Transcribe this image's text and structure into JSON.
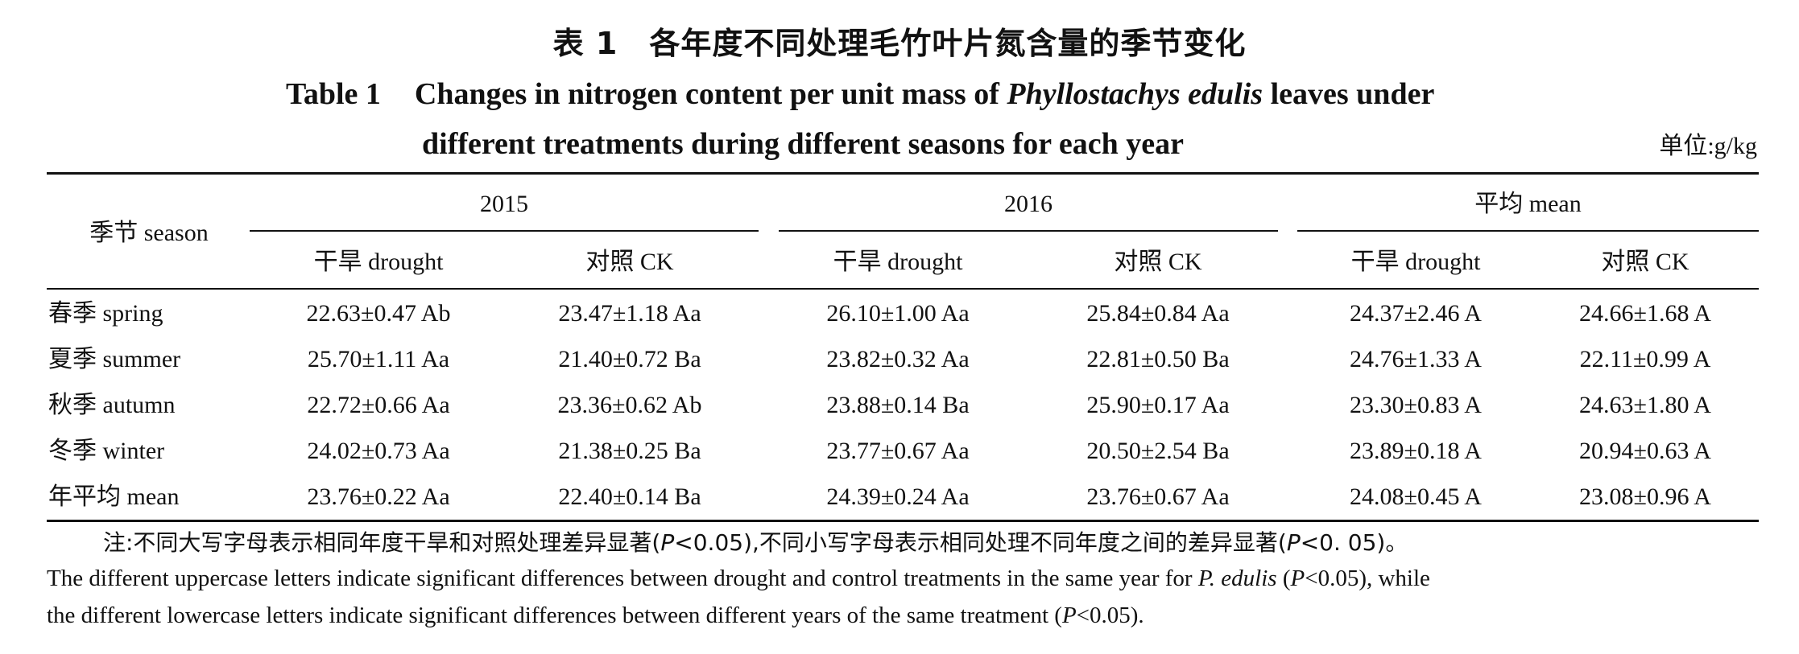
{
  "title": {
    "cn": "表 1　各年度不同处理毛竹叶片氮含量的季节变化",
    "en_number": "Table 1",
    "en_line1_before": "Changes in nitrogen content per unit mass of ",
    "en_species": "Phyllostachys edulis",
    "en_line1_after": " leaves under",
    "en_line2": "different treatments during different seasons for each year"
  },
  "unit": "单位:g/kg",
  "table": {
    "row_header": "季节 season",
    "groups": [
      "2015",
      "2016",
      "平均 mean"
    ],
    "subheaders": [
      "干旱 drought",
      "对照 CK",
      "干旱 drought",
      "对照 CK",
      "干旱 drought",
      "对照 CK"
    ],
    "rows": [
      {
        "season": "春季 spring",
        "values": [
          "22.63±0.47 Ab",
          "23.47±1.18 Aa",
          "26.10±1.00 Aa",
          "25.84±0.84 Aa",
          "24.37±2.46 A",
          "24.66±1.68 A"
        ]
      },
      {
        "season": "夏季 summer",
        "values": [
          "25.70±1.11 Aa",
          "21.40±0.72 Ba",
          "23.82±0.32 Aa",
          "22.81±0.50 Ba",
          "24.76±1.33 A",
          "22.11±0.99 A"
        ]
      },
      {
        "season": "秋季 autumn",
        "values": [
          "22.72±0.66 Aa",
          "23.36±0.62 Ab",
          "23.88±0.14 Ba",
          "25.90±0.17 Aa",
          "23.30±0.83 A",
          "24.63±1.80 A"
        ]
      },
      {
        "season": "冬季 winter",
        "values": [
          "24.02±0.73 Aa",
          "21.38±0.25 Ba",
          "23.77±0.67 Aa",
          "20.50±2.54 Ba",
          "23.89±0.18 A",
          "20.94±0.63 A"
        ]
      },
      {
        "season": "年平均 mean",
        "values": [
          "23.76±0.22 Aa",
          "22.40±0.14 Ba",
          "24.39±0.24 Aa",
          "23.76±0.67 Aa",
          "24.08±0.45 A",
          "23.08±0.96 A"
        ]
      }
    ]
  },
  "note": {
    "cn_a": "注:不同大写字母表示相同年度干旱和对照处理差异显著(",
    "cn_p1": "P",
    "cn_b": "<0.05),不同小写字母表示相同处理不同年度之间的差异显著(",
    "cn_p2": "P",
    "cn_c": "<0. 05)。",
    "en1_a": "The different uppercase letters indicate significant differences between drought and control treatments in the same year for ",
    "en1_species": "P. edulis",
    "en1_b": " (",
    "en1_p": "P",
    "en1_c": "<0.05), while",
    "en2_a": "the different lowercase letters indicate significant differences between different years of the same treatment (",
    "en2_p": "P",
    "en2_b": "<0.05)."
  }
}
